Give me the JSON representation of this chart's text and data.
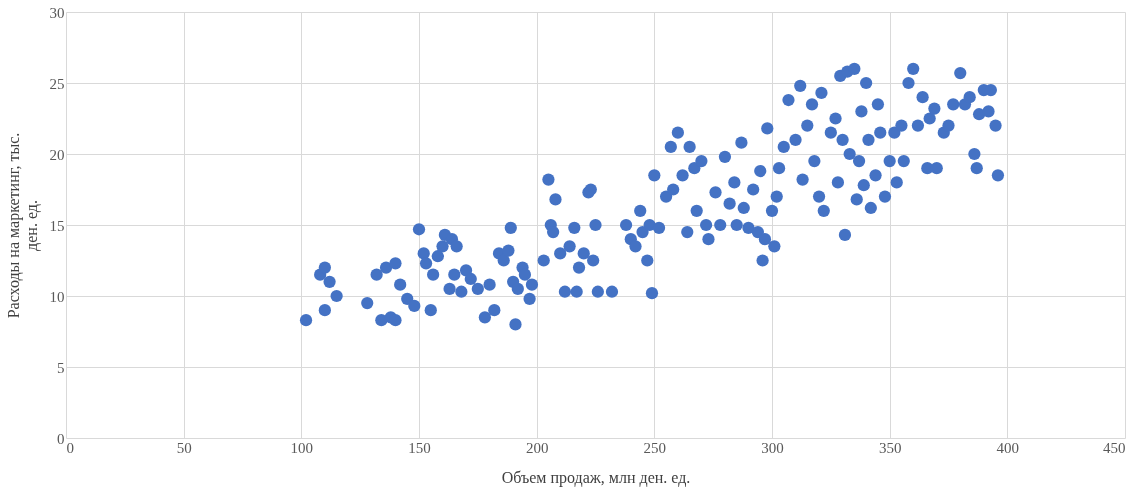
{
  "chart_data": {
    "type": "scatter",
    "xlabel": "Объем продаж, млн ден. ед.",
    "ylabel": "Расходы на маркетинг, тыс. ден. ед.",
    "xlim": [
      0,
      450
    ],
    "xticks": [
      0,
      50,
      100,
      150,
      200,
      250,
      300,
      350,
      400,
      450
    ],
    "ylim": [
      0,
      30
    ],
    "yticks": [
      0,
      5,
      10,
      15,
      20,
      25,
      30
    ],
    "grid": true,
    "marker": "circle",
    "series": [
      {
        "color": "#4472c4",
        "x": [
          102,
          108,
          110,
          112,
          110,
          115,
          128,
          132,
          134,
          136,
          138,
          140,
          142,
          145,
          148,
          140,
          150,
          152,
          153,
          155,
          156,
          158,
          160,
          161,
          163,
          164,
          165,
          166,
          168,
          170,
          172,
          175,
          178,
          180,
          182,
          184,
          186,
          188,
          189,
          190,
          191,
          192,
          194,
          195,
          197,
          198,
          203,
          205,
          206,
          207,
          208,
          210,
          212,
          214,
          216,
          217,
          218,
          220,
          222,
          223,
          224,
          225,
          226,
          232,
          238,
          240,
          242,
          244,
          245,
          247,
          248,
          249,
          250,
          252,
          255,
          257,
          258,
          260,
          262,
          264,
          265,
          267,
          268,
          270,
          272,
          273,
          276,
          278,
          280,
          282,
          284,
          285,
          287,
          288,
          290,
          292,
          294,
          295,
          296,
          297,
          298,
          300,
          301,
          302,
          303,
          305,
          307,
          310,
          312,
          313,
          315,
          317,
          318,
          320,
          321,
          322,
          325,
          327,
          328,
          329,
          330,
          331,
          332,
          333,
          335,
          336,
          337,
          338,
          339,
          340,
          341,
          342,
          344,
          345,
          346,
          348,
          350,
          352,
          353,
          355,
          356,
          358,
          360,
          362,
          364,
          366,
          367,
          369,
          370,
          373,
          375,
          377,
          380,
          382,
          384,
          386,
          387,
          388,
          390,
          392,
          393,
          395,
          396
        ],
        "values": [
          8.3,
          11.5,
          12,
          11,
          9,
          10,
          9.5,
          11.5,
          8.3,
          12,
          8.5,
          12.3,
          10.8,
          9.8,
          9.3,
          8.3,
          14.7,
          13,
          12.3,
          9,
          11.5,
          12.8,
          13.5,
          14.3,
          10.5,
          14,
          11.5,
          13.5,
          10.3,
          11.8,
          11.2,
          10.5,
          8.5,
          10.8,
          9,
          13,
          12.5,
          13.2,
          14.8,
          11,
          8,
          10.5,
          12,
          11.5,
          9.8,
          10.8,
          12.5,
          18.2,
          15,
          14.5,
          16.8,
          13,
          10.3,
          13.5,
          14.8,
          10.3,
          12,
          13,
          17.3,
          17.5,
          12.5,
          15,
          10.3,
          10.3,
          15,
          14,
          13.5,
          16,
          14.5,
          12.5,
          15,
          10.2,
          18.5,
          14.8,
          17,
          20.5,
          17.5,
          21.5,
          18.5,
          14.5,
          20.5,
          19,
          16,
          19.5,
          15,
          14,
          17.3,
          15,
          19.8,
          16.5,
          18,
          15,
          20.8,
          16.2,
          14.8,
          17.5,
          14.5,
          18.8,
          12.5,
          14,
          21.8,
          16,
          13.5,
          17,
          19,
          20.5,
          23.8,
          21,
          24.8,
          18.2,
          22,
          23.5,
          19.5,
          17,
          24.3,
          16,
          21.5,
          22.5,
          18,
          25.5,
          21,
          14.3,
          25.8,
          20,
          26,
          16.8,
          19.5,
          23,
          17.8,
          25,
          21,
          16.2,
          18.5,
          23.5,
          21.5,
          17,
          19.5,
          21.5,
          18,
          22,
          19.5,
          25,
          26,
          22,
          24,
          19,
          22.5,
          23.2,
          19,
          21.5,
          22,
          23.5,
          25.7,
          23.5,
          24,
          20,
          19,
          22.8,
          24.5,
          23,
          24.5,
          22,
          18.5
        ]
      }
    ]
  }
}
